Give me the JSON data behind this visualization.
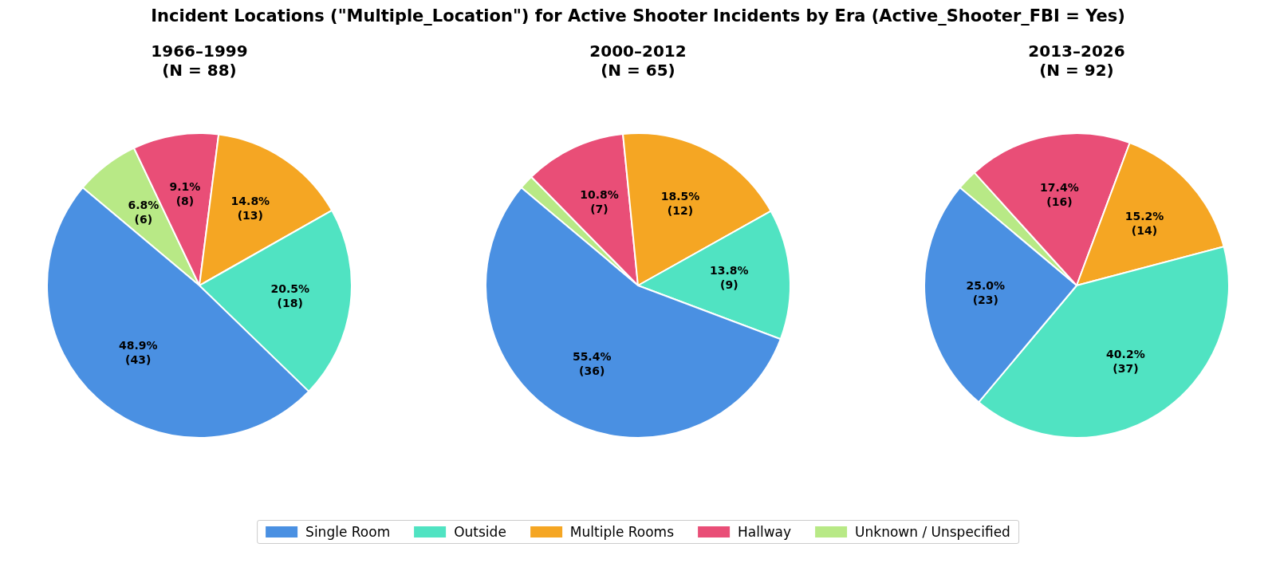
{
  "chart_data": [
    {
      "type": "pie",
      "title": "1966–1999",
      "subtitle": "(N = 88)",
      "legend": "bottom",
      "annotations": [
        "Incident Locations (\"Multiple_Location\") for Active Shooter Incidents by Era (Active_Shooter_FBI = Yes)"
      ],
      "categories": [
        "Single Room",
        "Outside",
        "Multiple Rooms",
        "Hallway",
        "Unknown / Unspecified"
      ],
      "values": [
        43,
        18,
        13,
        8,
        6
      ],
      "colors": [
        "#4a90e2",
        "#50e3c2",
        "#f5a623",
        "#e94e77",
        "#b8e986"
      ],
      "value_labels": [
        "48.9%\n(43)",
        "20.5%\n(18)",
        "14.8%\n(13)",
        "9.1%\n(8)",
        "6.8%\n(6)"
      ]
    },
    {
      "type": "pie",
      "title": "2000–2012",
      "subtitle": "(N = 65)",
      "categories": [
        null,
        null,
        null,
        null,
        null
      ],
      "values": [
        36,
        9,
        12,
        7,
        1
      ],
      "colors": [
        "#4a90e2",
        "#50e3c2",
        "#f5a623",
        "#e94e77",
        "#b8e986"
      ],
      "value_labels": [
        "55.4%\n(36)",
        "13.8%\n(9)",
        "18.5%\n(12)",
        "10.8%\n(7)",
        null
      ]
    },
    {
      "type": "pie",
      "title": "2013–2026",
      "subtitle": "(N = 92)",
      "categories": [
        null,
        null,
        null,
        null,
        null
      ],
      "values": [
        23,
        37,
        14,
        16,
        2
      ],
      "colors": [
        "#4a90e2",
        "#50e3c2",
        "#f5a623",
        "#e94e77",
        "#b8e986"
      ],
      "value_labels": [
        "25.0%\n(23)",
        "40.2%\n(37)",
        "15.2%\n(14)",
        "17.4%\n(16)",
        null
      ]
    }
  ]
}
